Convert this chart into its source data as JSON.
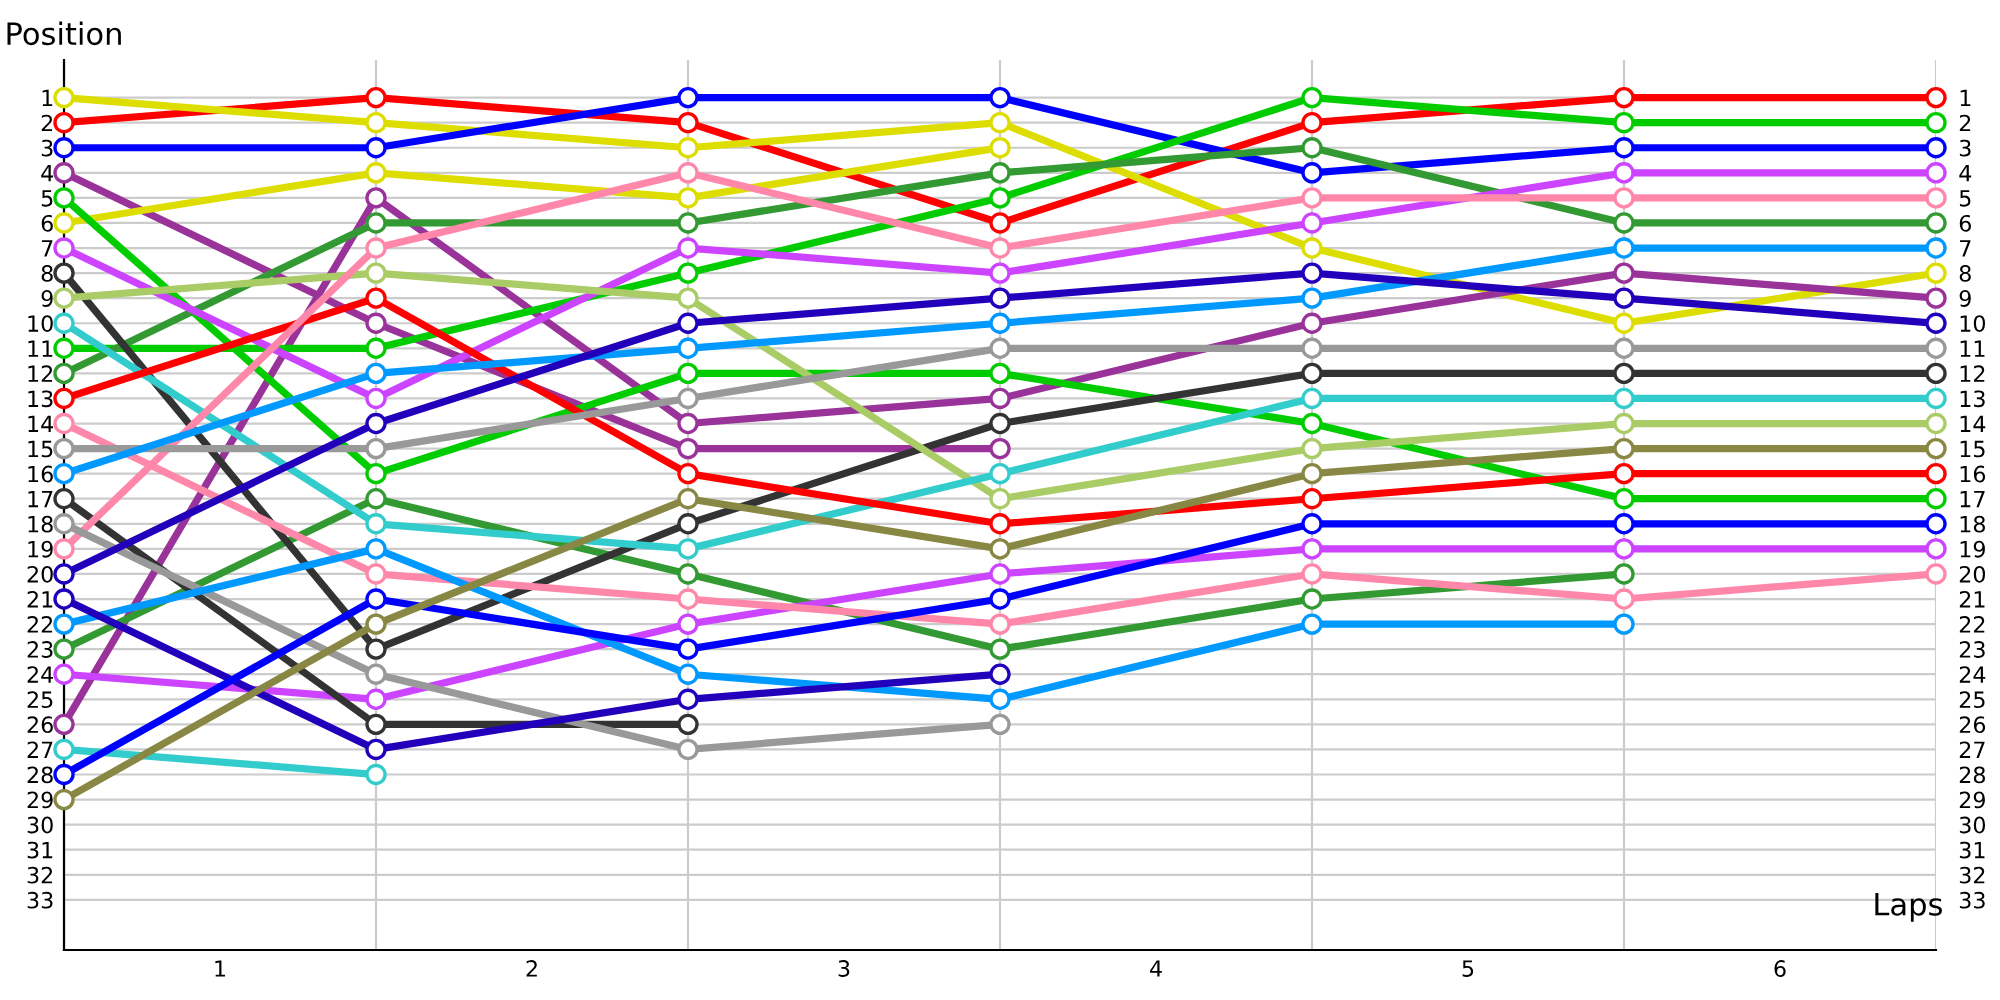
{
  "chart_data": {
    "type": "line",
    "xlabel": "Laps",
    "ylabel": "Position",
    "x": [
      0,
      1,
      2,
      3,
      4,
      5,
      6
    ],
    "xlim": [
      0,
      6
    ],
    "xticks": [
      {
        "value": 0,
        "label": null
      },
      {
        "value": 0.5,
        "label": "1"
      },
      {
        "value": 1,
        "label": null
      },
      {
        "value": 1.5,
        "label": "2"
      },
      {
        "value": 2,
        "label": null
      },
      {
        "value": 2.5,
        "label": "3"
      },
      {
        "value": 3,
        "label": null
      },
      {
        "value": 3.5,
        "label": "4"
      },
      {
        "value": 4,
        "label": null
      },
      {
        "value": 4.5,
        "label": "5"
      },
      {
        "value": 5,
        "label": null
      },
      {
        "value": 5.5,
        "label": "6"
      },
      {
        "value": 6,
        "label": null
      }
    ],
    "ylim": [
      35,
      -0.5
    ],
    "yticks": [
      1,
      2,
      3,
      4,
      5,
      6,
      7,
      8,
      9,
      10,
      11,
      12,
      13,
      14,
      15,
      16,
      17,
      18,
      19,
      20,
      21,
      22,
      23,
      24,
      25,
      26,
      27,
      28,
      29,
      30,
      31,
      32,
      33
    ],
    "y2lim": [
      35,
      -0.5
    ],
    "y2ticks": [
      1,
      2,
      3,
      4,
      5,
      6,
      7,
      8,
      9,
      10,
      11,
      12,
      13,
      14,
      15,
      16,
      17,
      18,
      19,
      20,
      21,
      22,
      23,
      24,
      25,
      26,
      27,
      28,
      29,
      30,
      31,
      32,
      33
    ],
    "grid": true,
    "marker": "circle",
    "line_style": "solid",
    "series": [
      {
        "color": "#ff0000",
        "values": [
          2,
          1,
          2,
          6,
          2,
          1,
          1
        ]
      },
      {
        "color": "#dddd00",
        "values": [
          1,
          2,
          3,
          2,
          7,
          10,
          8
        ]
      },
      {
        "color": "#0000ff",
        "values": [
          3,
          3,
          1,
          1,
          4,
          3,
          3
        ]
      },
      {
        "color": "#993399",
        "values": [
          4,
          10,
          15,
          15,
          null,
          null,
          null
        ]
      },
      {
        "color": "#993399",
        "values": [
          26,
          5,
          14,
          13,
          10,
          8,
          9
        ]
      },
      {
        "color": "#dddd00",
        "values": [
          6,
          4,
          5,
          3,
          null,
          null,
          null
        ]
      },
      {
        "color": "#00cc00",
        "values": [
          5,
          16,
          12,
          12,
          14,
          17,
          17
        ]
      },
      {
        "color": "#00cc00",
        "values": [
          11,
          11,
          8,
          5,
          1,
          2,
          2
        ]
      },
      {
        "color": "#339933",
        "values": [
          12,
          6,
          6,
          4,
          3,
          6,
          6
        ]
      },
      {
        "color": "#339933",
        "values": [
          23,
          17,
          20,
          23,
          21,
          20,
          null
        ]
      },
      {
        "color": "#cc44ff",
        "values": [
          7,
          13,
          7,
          8,
          6,
          4,
          4
        ]
      },
      {
        "color": "#cc44ff",
        "values": [
          24,
          25,
          22,
          20,
          19,
          19,
          19
        ]
      },
      {
        "color": "#333333",
        "values": [
          8,
          23,
          18,
          14,
          12,
          12,
          12
        ]
      },
      {
        "color": "#333333",
        "values": [
          17,
          26,
          26,
          null,
          null,
          null,
          null
        ]
      },
      {
        "color": "#aacc66",
        "values": [
          9,
          8,
          9,
          17,
          15,
          14,
          14
        ]
      },
      {
        "color": "#33cccc",
        "values": [
          10,
          18,
          19,
          16,
          13,
          13,
          13
        ]
      },
      {
        "color": "#33cccc",
        "values": [
          27,
          28,
          null,
          null,
          null,
          null,
          null
        ]
      },
      {
        "color": "#ff0000",
        "values": [
          13,
          9,
          16,
          18,
          17,
          16,
          16
        ]
      },
      {
        "color": "#ff88aa",
        "values": [
          14,
          20,
          21,
          22,
          20,
          21,
          20
        ]
      },
      {
        "color": "#ff88aa",
        "values": [
          19,
          7,
          4,
          7,
          5,
          5,
          5
        ]
      },
      {
        "color": "#999999",
        "values": [
          15,
          15,
          13,
          11,
          11,
          11,
          11
        ]
      },
      {
        "color": "#999999",
        "values": [
          18,
          24,
          27,
          26,
          null,
          null,
          null
        ]
      },
      {
        "color": "#0099ff",
        "values": [
          16,
          12,
          11,
          10,
          9,
          7,
          7
        ]
      },
      {
        "color": "#0099ff",
        "values": [
          22,
          19,
          24,
          25,
          22,
          22,
          null
        ]
      },
      {
        "color": "#2200bb",
        "values": [
          20,
          14,
          10,
          9,
          8,
          9,
          10
        ]
      },
      {
        "color": "#2200bb",
        "values": [
          21,
          27,
          25,
          24,
          null,
          null,
          null
        ]
      },
      {
        "color": "#0000ff",
        "values": [
          28,
          21,
          23,
          21,
          18,
          18,
          18
        ]
      },
      {
        "color": "#888844",
        "values": [
          29,
          22,
          17,
          19,
          16,
          15,
          15
        ]
      }
    ]
  }
}
